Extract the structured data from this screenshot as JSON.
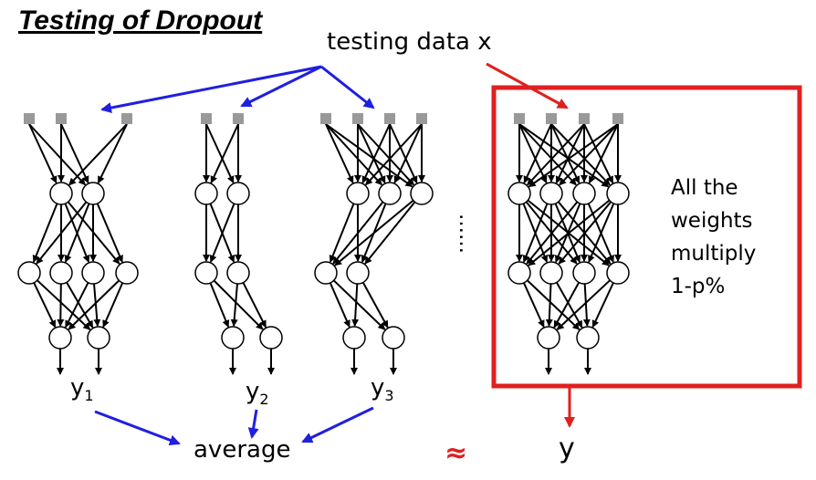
{
  "title": "Testing of Dropout",
  "input_label": "testing data x",
  "note_lines": [
    "All the",
    "weights",
    "multiply",
    "1-p%"
  ],
  "outputs": {
    "y1": {
      "base": "y",
      "sub": "1"
    },
    "y2": {
      "base": "y",
      "sub": "2"
    },
    "y3": {
      "base": "y",
      "sub": "3"
    }
  },
  "average_label": "average",
  "approx_symbol": "≈",
  "final_output": "y",
  "ellipsis": "……",
  "colors": {
    "blue_arrow": "#1f1fe0",
    "red_box": "#e02020",
    "input_square": "#999999",
    "neuron_stroke": "#000000"
  },
  "networks": [
    {
      "id": "net1",
      "inputs_kept": [
        0,
        1,
        3
      ],
      "hidden1_kept": [
        1,
        2
      ],
      "hidden2_kept": [
        0,
        1,
        2,
        3
      ],
      "outputs": 2
    },
    {
      "id": "net2",
      "inputs_kept": [
        0,
        1
      ],
      "hidden1_kept": [
        0,
        1
      ],
      "hidden2_kept": [
        0,
        1
      ],
      "outputs": 2
    },
    {
      "id": "net3",
      "inputs_kept": [
        0,
        1,
        2,
        3
      ],
      "hidden1_kept": [
        1,
        2,
        3
      ],
      "hidden2_kept": [
        0,
        1
      ],
      "outputs": 2
    },
    {
      "id": "full",
      "inputs_kept": [
        0,
        1,
        2,
        3
      ],
      "hidden1_kept": [
        0,
        1,
        2,
        3
      ],
      "hidden2_kept": [
        0,
        1,
        2,
        3
      ],
      "outputs": 2
    }
  ]
}
